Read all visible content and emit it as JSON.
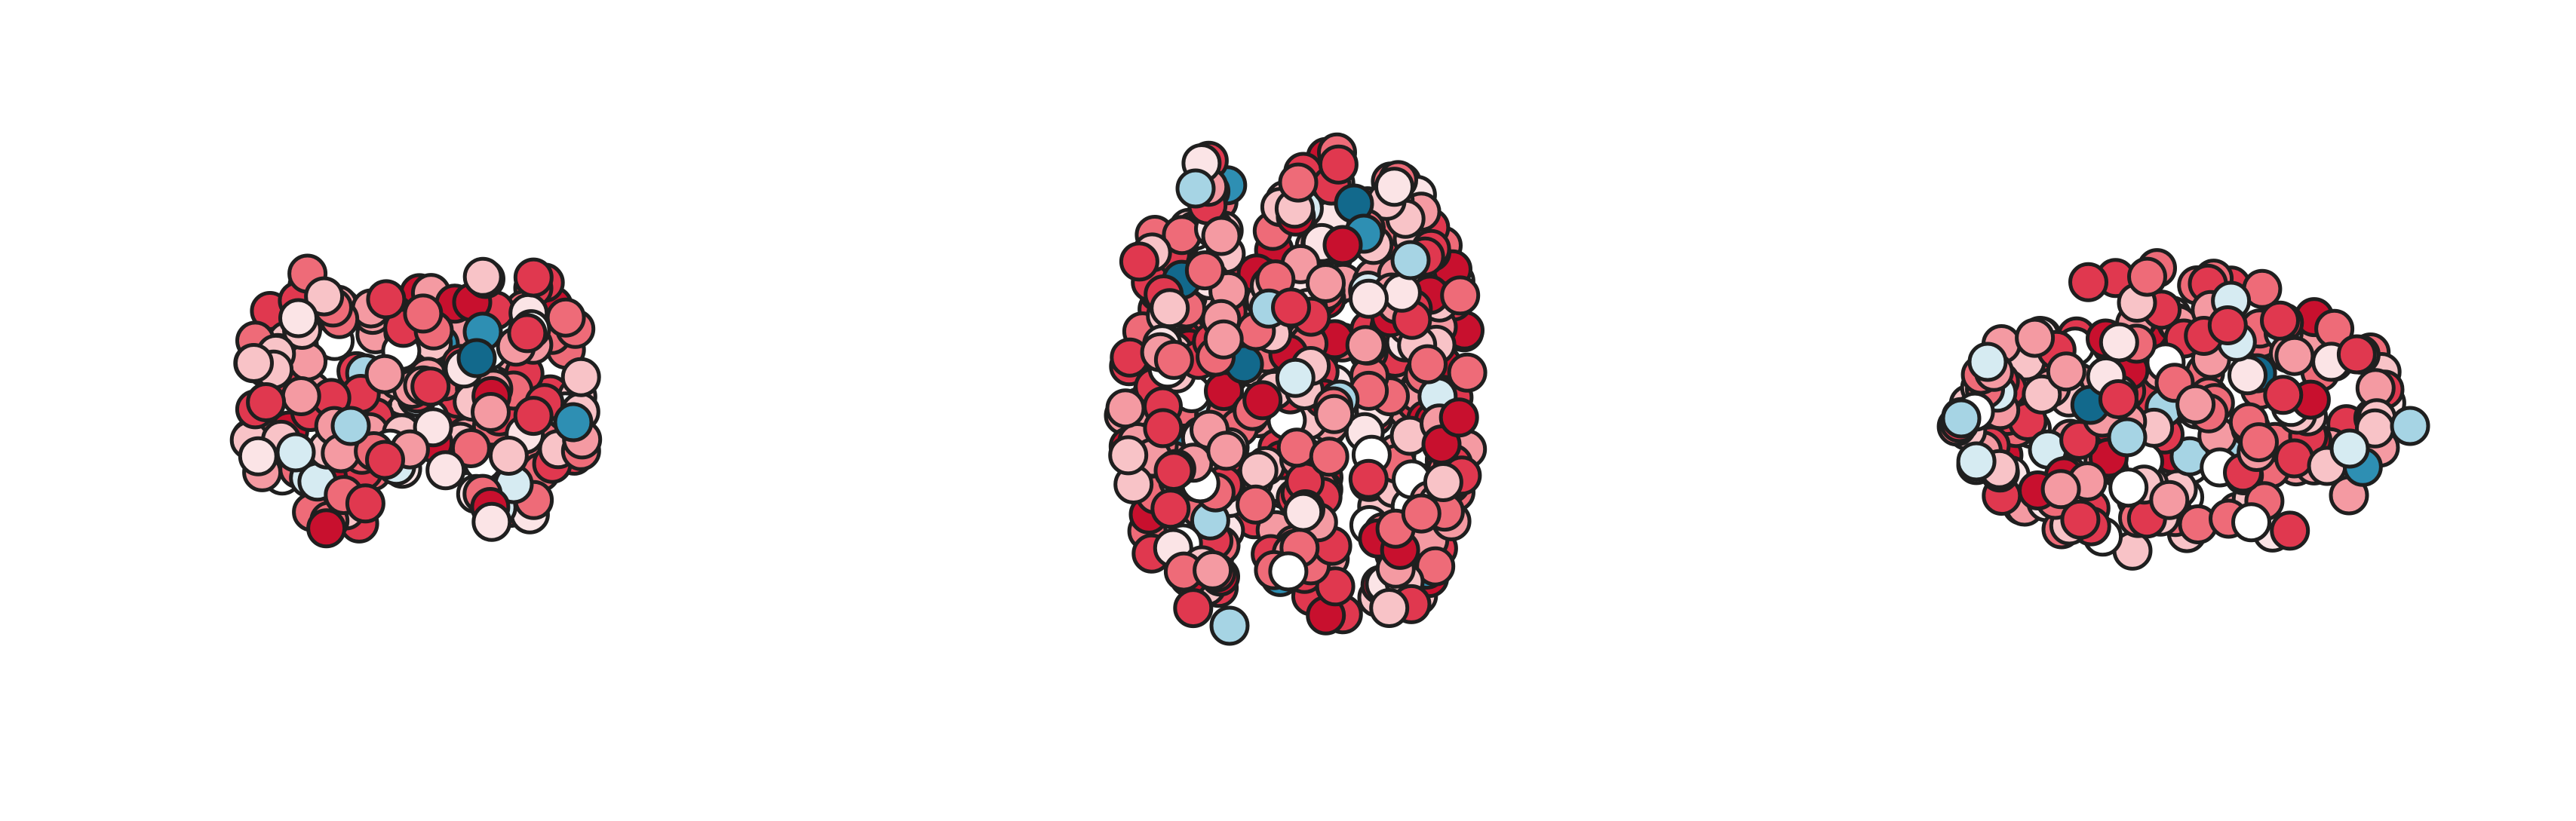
{
  "figure": {
    "kind": "brain connectome node plot",
    "views": [
      "coronal",
      "axial",
      "sagittal"
    ],
    "palette": {
      "dark_red": "#c8102e",
      "red": "#e0384f",
      "salmon": "#ee6b78",
      "rose": "#f49aa2",
      "pink": "#f8c3c7",
      "blush": "#fbe4e6",
      "white": "#ffffff",
      "pale_blue": "#d6ebf2",
      "light_blue": "#a6d4e4",
      "mid_blue": "#2e8fb3",
      "dark_blue": "#12698c",
      "outline": "#1f1f1f",
      "background": "#ffffff"
    }
  }
}
